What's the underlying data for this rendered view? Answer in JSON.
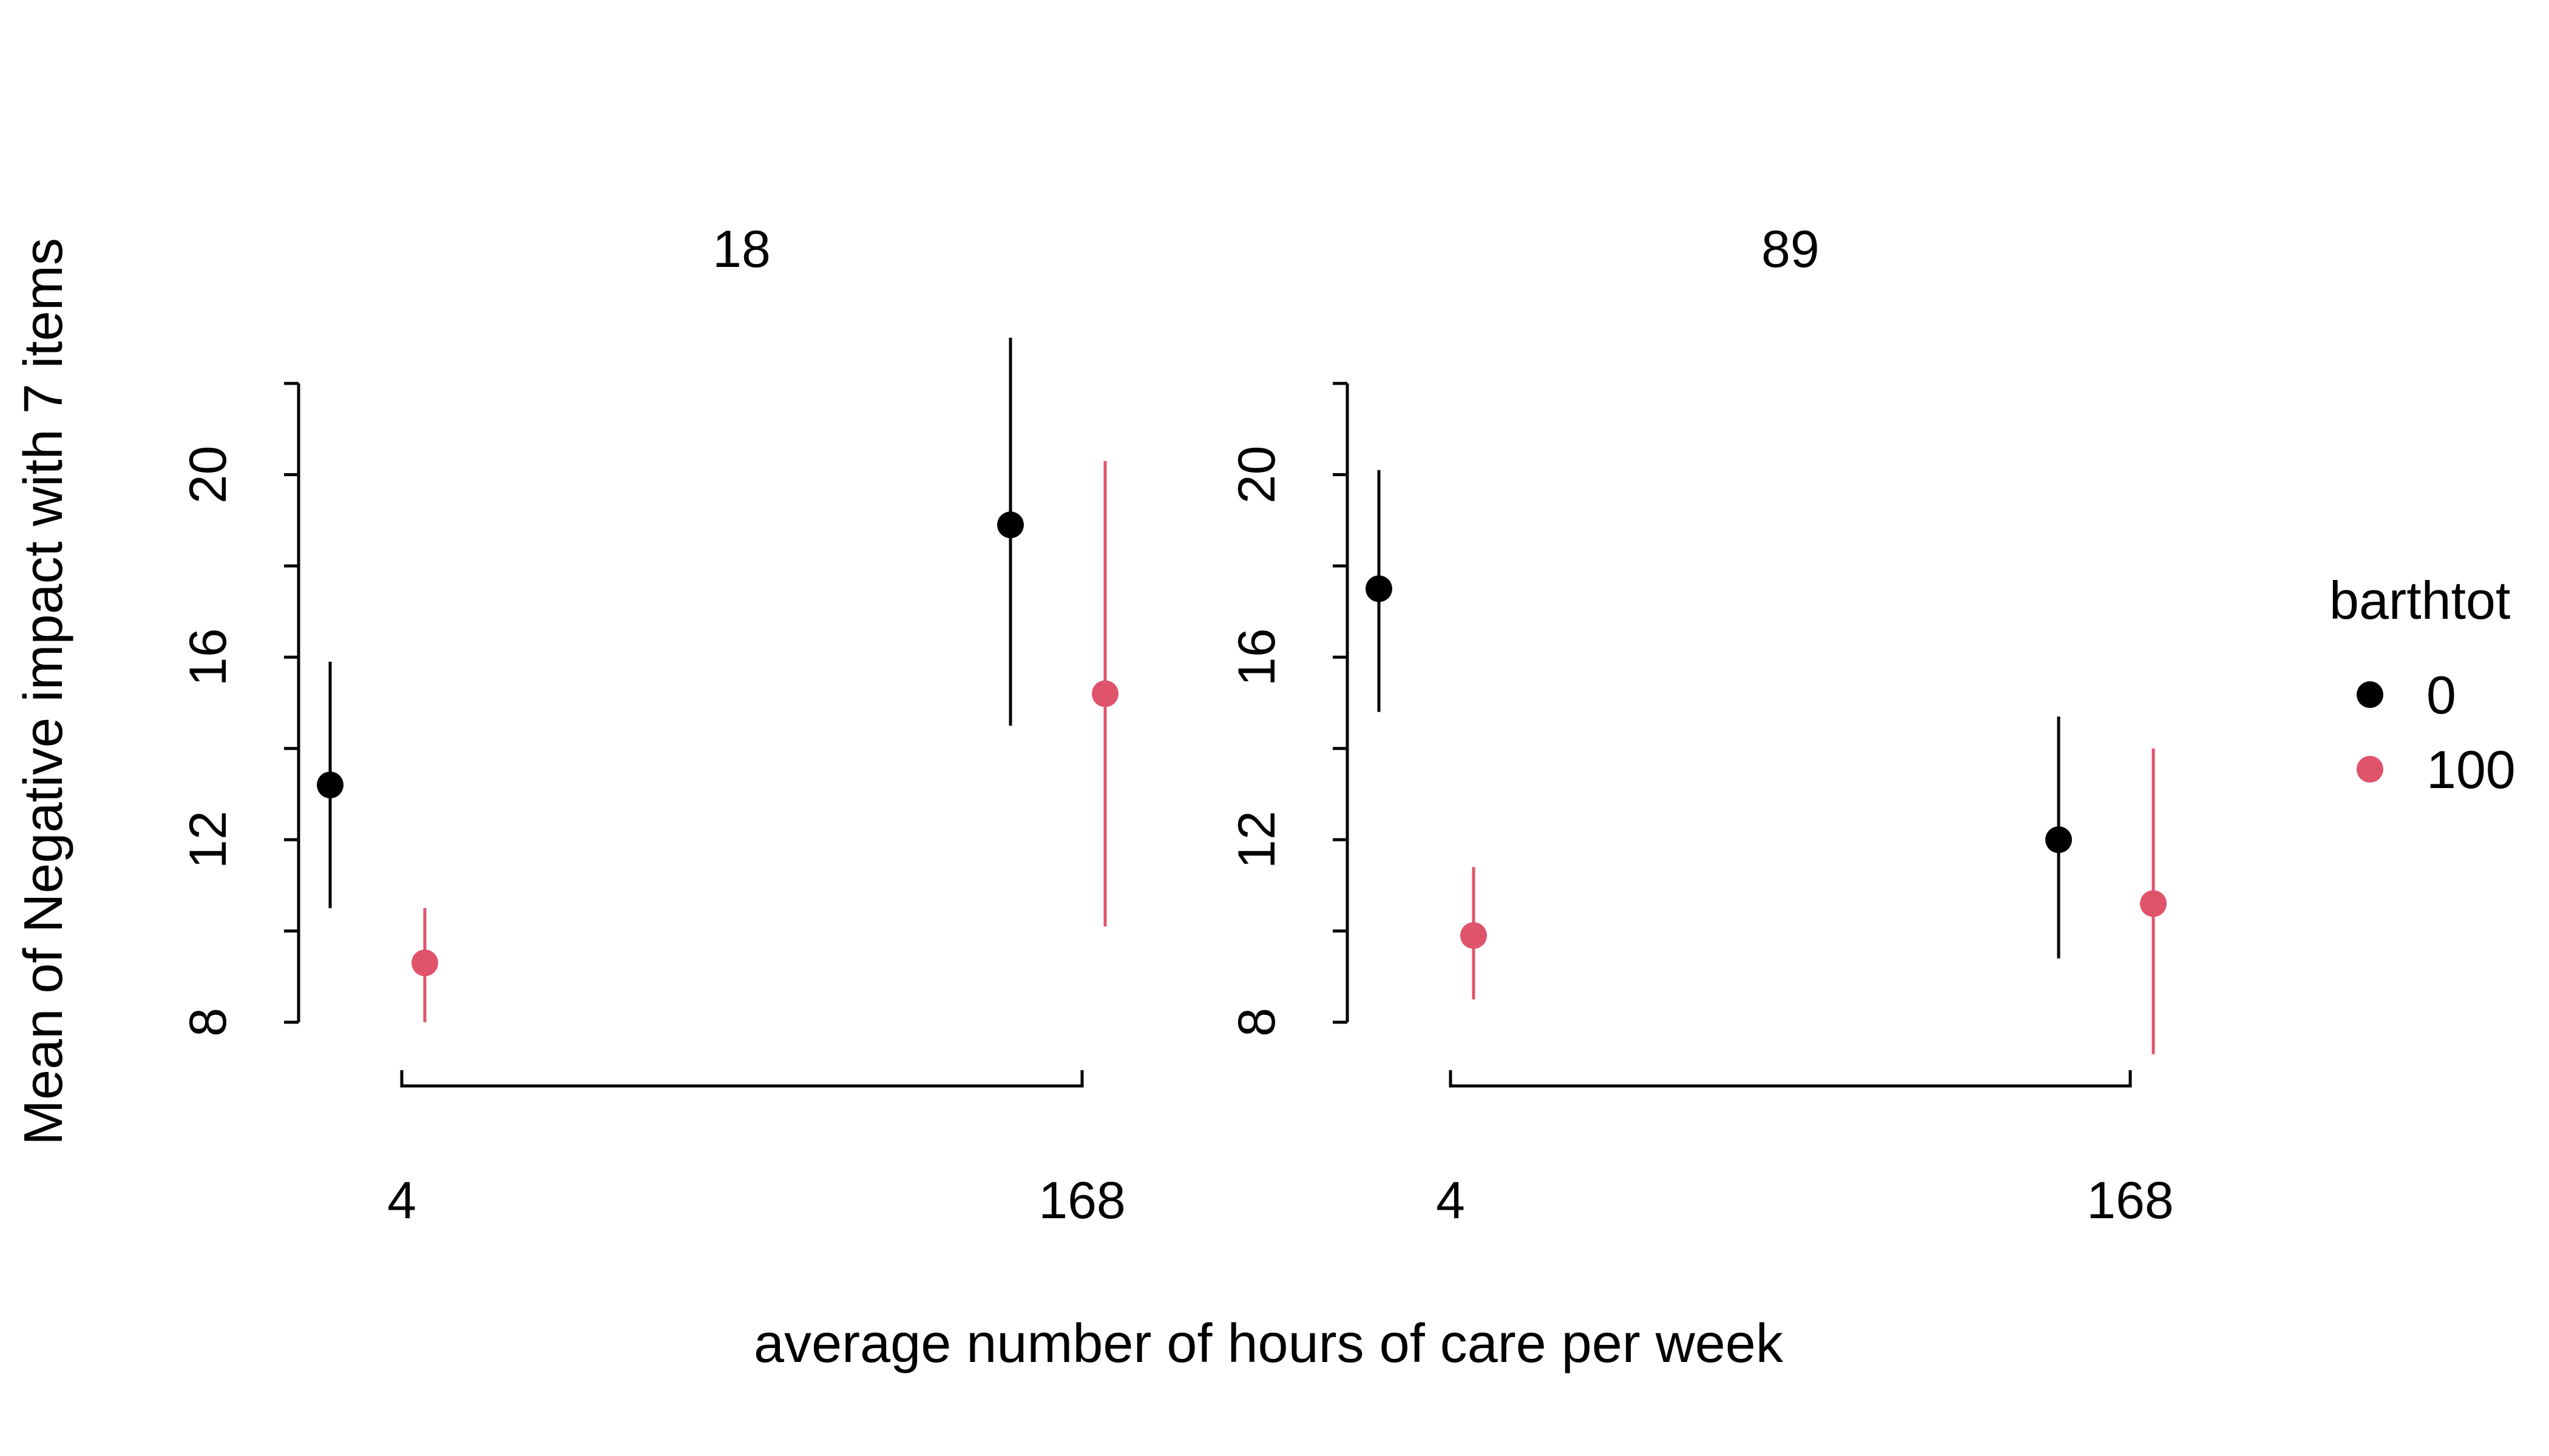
{
  "chart_data": {
    "type": "scatter",
    "chart_kind": "point-range (mean with interval) faceted by panel",
    "xlabel": "average number of hours of care per week",
    "ylabel": "Mean of Negative impact with 7 items",
    "x_tick_labels": [
      "4",
      "168"
    ],
    "y_ticks": [
      8,
      12,
      16,
      20
    ],
    "ylim": [
      8,
      22
    ],
    "grid": false,
    "legend": {
      "title": "barthtot",
      "placement": "right",
      "entries": [
        {
          "label": "0",
          "color": "#000000"
        },
        {
          "label": "100",
          "color": "#DF536B"
        }
      ]
    },
    "panels": [
      {
        "title": "18",
        "series": [
          {
            "name": "0",
            "color": "#000000",
            "points": [
              {
                "x": "4",
                "y": 13.2,
                "lower": 10.5,
                "upper": 15.9
              },
              {
                "x": "168",
                "y": 18.9,
                "lower": 14.5,
                "upper": 23.0
              }
            ]
          },
          {
            "name": "100",
            "color": "#DF536B",
            "points": [
              {
                "x": "4",
                "y": 9.3,
                "lower": 8.0,
                "upper": 10.5
              },
              {
                "x": "168",
                "y": 15.2,
                "lower": 10.1,
                "upper": 20.3
              }
            ]
          }
        ]
      },
      {
        "title": "89",
        "series": [
          {
            "name": "0",
            "color": "#000000",
            "points": [
              {
                "x": "4",
                "y": 17.5,
                "lower": 14.8,
                "upper": 20.1
              },
              {
                "x": "168",
                "y": 12.0,
                "lower": 9.4,
                "upper": 14.7
              }
            ]
          },
          {
            "name": "100",
            "color": "#DF536B",
            "points": [
              {
                "x": "4",
                "y": 9.9,
                "lower": 8.5,
                "upper": 11.4
              },
              {
                "x": "168",
                "y": 10.6,
                "lower": 7.3,
                "upper": 14.0
              }
            ]
          }
        ]
      }
    ]
  }
}
